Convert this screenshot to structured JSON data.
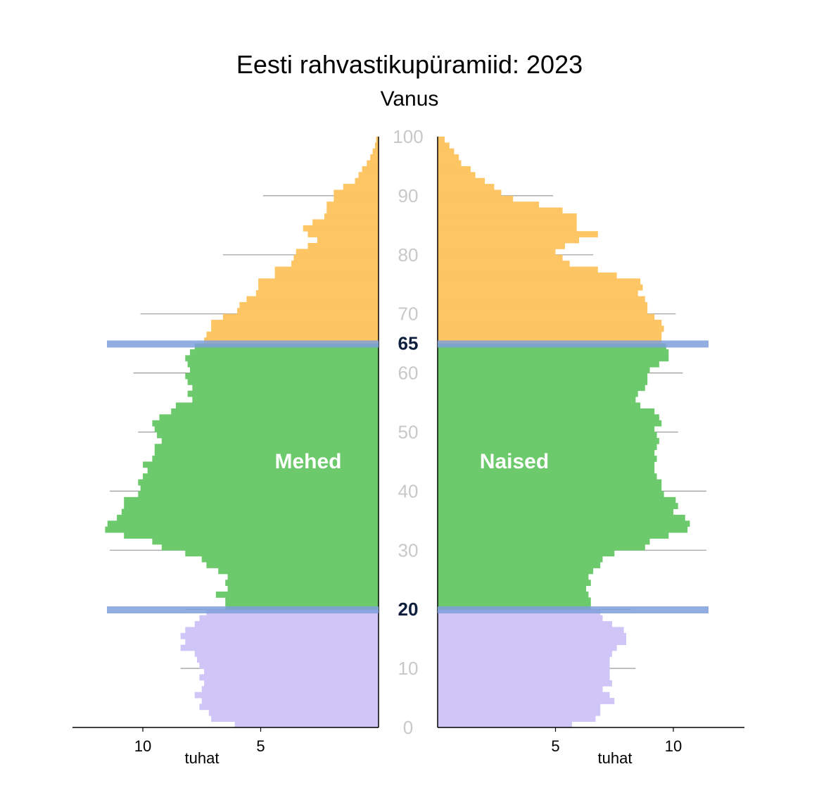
{
  "chart_data": {
    "type": "bar",
    "orientation": "horizontal-pyramid",
    "title": "Eesti rahvastikupüramiid: 2023",
    "y_axis_label": "Vanus",
    "x_unit_label_left": "tuhat",
    "x_unit_label_right": "tuhat",
    "age_ticks": [
      "0",
      "10",
      "20",
      "30",
      "40",
      "50",
      "60",
      "70",
      "80",
      "90",
      "100"
    ],
    "age_tick_values": [
      0,
      10,
      20,
      30,
      40,
      50,
      60,
      70,
      80,
      90,
      100
    ],
    "x_ticks_left": [
      "10",
      "5"
    ],
    "x_tick_values_left": [
      10,
      5
    ],
    "x_ticks_right": [
      "5",
      "10"
    ],
    "x_tick_values_right": [
      5,
      10
    ],
    "xlim": [
      0,
      13
    ],
    "ylim": [
      0,
      100
    ],
    "marker_ages": [
      20,
      65
    ],
    "marker_labels": [
      "20",
      "65"
    ],
    "left_label": "Mehed",
    "right_label": "Naised",
    "group_colors": {
      "child": "#cfc5f7",
      "working": "#6cc96c",
      "elderly": "#fdc563"
    },
    "marker_color": "#7f9fdd",
    "grid_color": "#9a9a9a",
    "series": [
      {
        "side": "left",
        "values": [
          6.1,
          7.1,
          7.2,
          7.6,
          7.5,
          7.8,
          7.5,
          7.4,
          7.6,
          7.4,
          7.6,
          7.7,
          7.8,
          8.4,
          8.2,
          8.4,
          8.2,
          7.8,
          7.6,
          7.3,
          6.5,
          6.5,
          6.9,
          6.4,
          6.5,
          6.4,
          6.8,
          7.3,
          7.5,
          8.2,
          9.2,
          9.6,
          10.8,
          11.6,
          11.5,
          11.1,
          10.9,
          10.8,
          10.8,
          10.2,
          10.1,
          10.2,
          10.0,
          9.8,
          10.0,
          9.6,
          9.5,
          9.5,
          9.2,
          9.4,
          9.5,
          9.6,
          9.3,
          8.8,
          8.6,
          7.9,
          8.1,
          7.9,
          8.1,
          8.2,
          8.0,
          8.1,
          8.2,
          8.0,
          7.8,
          7.4,
          7.3,
          7.1,
          7.1,
          6.6,
          6.0,
          5.9,
          5.6,
          5.2,
          5.1,
          5.1,
          4.4,
          4.4,
          3.7,
          3.6,
          3.5,
          3.0,
          2.6,
          3.0,
          3.2,
          2.8,
          2.3,
          2.2,
          2.2,
          1.9,
          1.9,
          1.5,
          1.0,
          0.85,
          0.7,
          0.5,
          0.35,
          0.25,
          0.15,
          0.1
        ]
      },
      {
        "side": "right",
        "values": [
          5.7,
          6.7,
          6.9,
          6.9,
          7.5,
          7.3,
          7.0,
          7.4,
          7.3,
          7.3,
          7.3,
          7.3,
          7.4,
          7.6,
          8.0,
          8.0,
          7.9,
          7.4,
          7.0,
          6.9,
          6.5,
          6.5,
          6.4,
          6.3,
          6.5,
          6.4,
          6.6,
          6.9,
          7.0,
          7.5,
          8.8,
          9.0,
          9.8,
          10.6,
          10.7,
          10.5,
          10.0,
          10.2,
          10.1,
          9.6,
          9.5,
          9.5,
          9.3,
          9.2,
          9.2,
          9.3,
          9.2,
          9.3,
          9.4,
          9.3,
          9.2,
          9.5,
          9.4,
          9.2,
          8.6,
          8.4,
          8.5,
          8.8,
          8.9,
          8.9,
          9.0,
          9.4,
          9.8,
          9.8,
          9.7,
          9.5,
          9.5,
          9.6,
          9.5,
          9.2,
          8.9,
          8.9,
          8.8,
          8.5,
          8.7,
          8.6,
          7.6,
          6.8,
          5.6,
          5.3,
          5.0,
          5.4,
          6.0,
          6.8,
          5.9,
          5.9,
          5.9,
          5.3,
          4.3,
          3.2,
          2.7,
          2.4,
          2.0,
          1.6,
          1.4,
          1.0,
          0.9,
          0.7,
          0.5,
          0.3
        ]
      }
    ]
  }
}
